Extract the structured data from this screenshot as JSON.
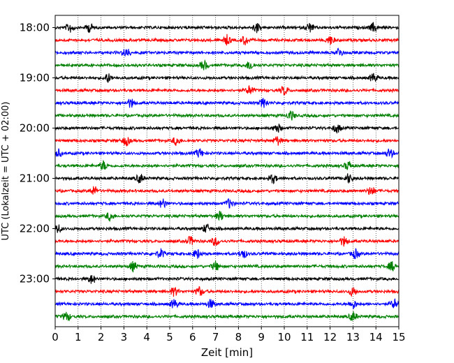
{
  "chart_data": {
    "type": "line",
    "title": "",
    "xlabel": "Zeit  [min]",
    "ylabel": "UTC (Lokalzeit = UTC + 02:00)",
    "xlim": [
      0,
      15
    ],
    "x_ticks": [
      0,
      1,
      2,
      3,
      4,
      5,
      6,
      7,
      8,
      9,
      10,
      11,
      12,
      13,
      14,
      15
    ],
    "x_tick_labels": [
      "0",
      "1",
      "2",
      "3",
      "4",
      "5",
      "6",
      "7",
      "8",
      "9",
      "10",
      "11",
      "12",
      "13",
      "14",
      "15"
    ],
    "y_ticks": [
      "18:00",
      "19:00",
      "20:00",
      "21:00",
      "22:00",
      "23:00"
    ],
    "grid": "vertical dotted lines at each minute",
    "traces_per_hour": 4,
    "trace_minutes": 15,
    "trace_colors": [
      "#000000",
      "#ff0000",
      "#0000ff",
      "#008000"
    ],
    "traces": [
      {
        "start": "18:00",
        "color": "#000000",
        "events_min": [
          0.65,
          1.5,
          8.8,
          11.1,
          13.9
        ]
      },
      {
        "start": "18:15",
        "color": "#ff0000",
        "events_min": [
          7.5,
          8.3,
          12.0
        ]
      },
      {
        "start": "18:30",
        "color": "#0000ff",
        "events_min": [
          3.1,
          12.4
        ]
      },
      {
        "start": "18:45",
        "color": "#008000",
        "events_min": [
          6.5,
          8.5
        ]
      },
      {
        "start": "19:00",
        "color": "#000000",
        "events_min": [
          2.3,
          13.9
        ]
      },
      {
        "start": "19:15",
        "color": "#ff0000",
        "events_min": [
          8.5,
          10.0
        ]
      },
      {
        "start": "19:30",
        "color": "#0000ff",
        "events_min": [
          3.3,
          9.1
        ]
      },
      {
        "start": "19:45",
        "color": "#008000",
        "events_min": [
          10.3
        ]
      },
      {
        "start": "20:00",
        "color": "#000000",
        "events_min": [
          9.7,
          12.3
        ]
      },
      {
        "start": "20:15",
        "color": "#ff0000",
        "events_min": [
          3.1,
          9.7,
          5.3
        ]
      },
      {
        "start": "20:30",
        "color": "#0000ff",
        "events_min": [
          0.1,
          6.3,
          14.6
        ]
      },
      {
        "start": "20:45",
        "color": "#008000",
        "events_min": [
          2.1,
          12.8
        ]
      },
      {
        "start": "21:00",
        "color": "#000000",
        "events_min": [
          3.7,
          9.5,
          12.8
        ]
      },
      {
        "start": "21:15",
        "color": "#ff0000",
        "events_min": [
          1.7,
          13.8
        ]
      },
      {
        "start": "21:30",
        "color": "#0000ff",
        "events_min": [
          4.7,
          7.6
        ]
      },
      {
        "start": "21:45",
        "color": "#008000",
        "events_min": [
          2.4,
          7.2
        ]
      },
      {
        "start": "22:00",
        "color": "#000000",
        "events_min": [
          0.1,
          6.6
        ]
      },
      {
        "start": "22:15",
        "color": "#ff0000",
        "events_min": [
          5.9,
          7.0,
          12.6
        ]
      },
      {
        "start": "22:30",
        "color": "#0000ff",
        "events_min": [
          4.6,
          6.2,
          8.2,
          13.1
        ]
      },
      {
        "start": "22:45",
        "color": "#008000",
        "events_min": [
          3.4,
          7.0,
          14.7
        ]
      },
      {
        "start": "23:00",
        "color": "#000000",
        "events_min": [
          1.6
        ]
      },
      {
        "start": "23:15",
        "color": "#ff0000",
        "events_min": [
          5.2,
          6.3,
          13.0
        ]
      },
      {
        "start": "23:30",
        "color": "#0000ff",
        "events_min": [
          5.2,
          6.8,
          13.0,
          14.8
        ]
      },
      {
        "start": "23:45",
        "color": "#008000",
        "events_min": [
          0.5,
          13.0
        ]
      }
    ]
  }
}
